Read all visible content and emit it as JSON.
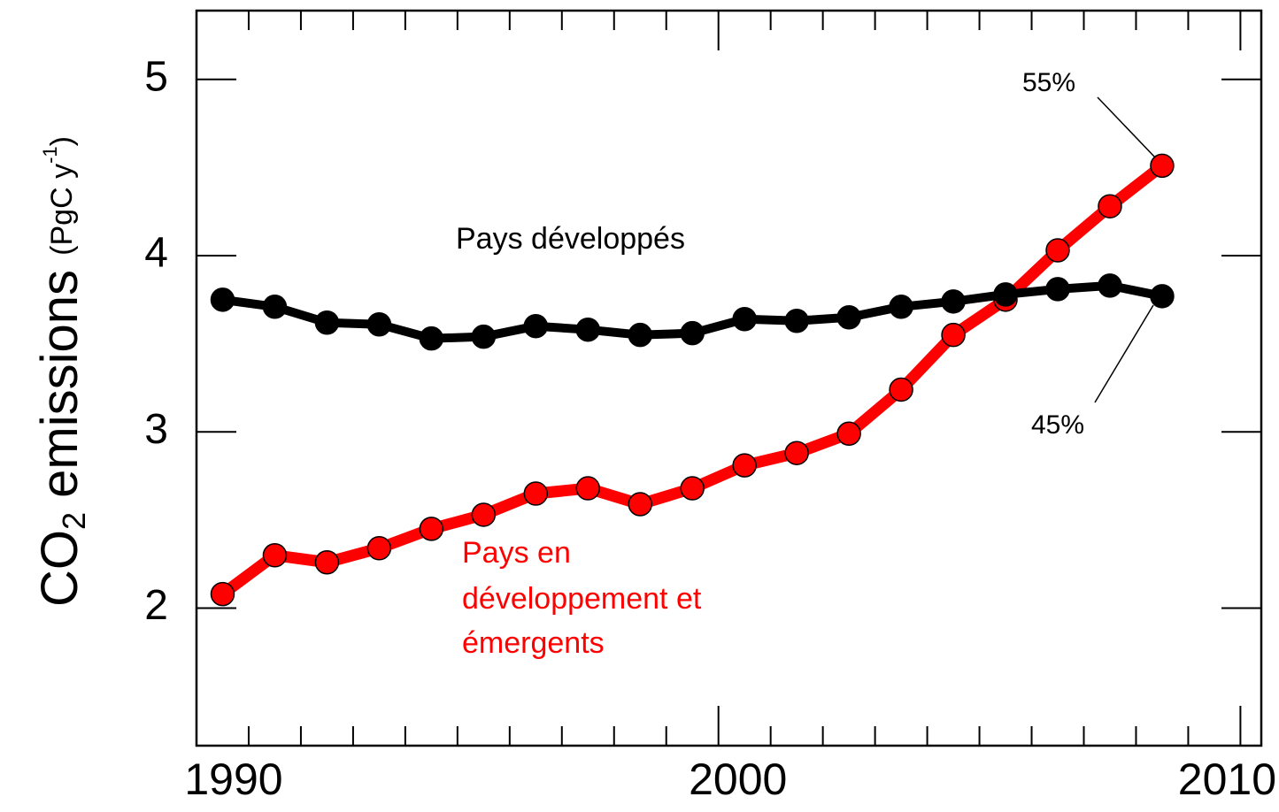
{
  "chart_data": {
    "type": "line",
    "ylabel": [
      "CO",
      "2",
      " emissions ",
      "(PgC y",
      "-1",
      ")"
    ],
    "x": [
      1990.5,
      1991.5,
      1992.5,
      1993.5,
      1994.5,
      1995.5,
      1996.5,
      1997.5,
      1998.5,
      1999.5,
      2000.5,
      2001.5,
      2002.5,
      2003.5,
      2004.5,
      2005.5,
      2006.5,
      2007.5,
      2008.5
    ],
    "series": [
      {
        "name": "Pays développés",
        "color": "#000000",
        "values": [
          3.75,
          3.71,
          3.62,
          3.61,
          3.53,
          3.54,
          3.6,
          3.58,
          3.55,
          3.56,
          3.64,
          3.63,
          3.65,
          3.71,
          3.74,
          3.78,
          3.81,
          3.83,
          3.77
        ]
      },
      {
        "name": [
          "Pays en",
          "développement et",
          "émergents"
        ],
        "color": "#ff0000",
        "values": [
          2.08,
          2.3,
          2.26,
          2.34,
          2.45,
          2.53,
          2.65,
          2.68,
          2.59,
          2.68,
          2.81,
          2.88,
          2.99,
          3.24,
          3.55,
          3.75,
          4.03,
          4.28,
          4.51
        ]
      }
    ],
    "annotations": [
      "55%",
      "45%"
    ],
    "xlim": [
      1990,
      2010.4
    ],
    "xticks": [
      1990,
      2000,
      2010
    ],
    "xminorticks": [
      1991,
      1992,
      1993,
      1994,
      1995,
      1996,
      1997,
      1998,
      1999,
      2001,
      2002,
      2003,
      2004,
      2005,
      2006,
      2007,
      2008,
      2009
    ],
    "ylim": [
      1.22,
      5.39
    ],
    "yticks": [
      2,
      3,
      4,
      5
    ]
  }
}
